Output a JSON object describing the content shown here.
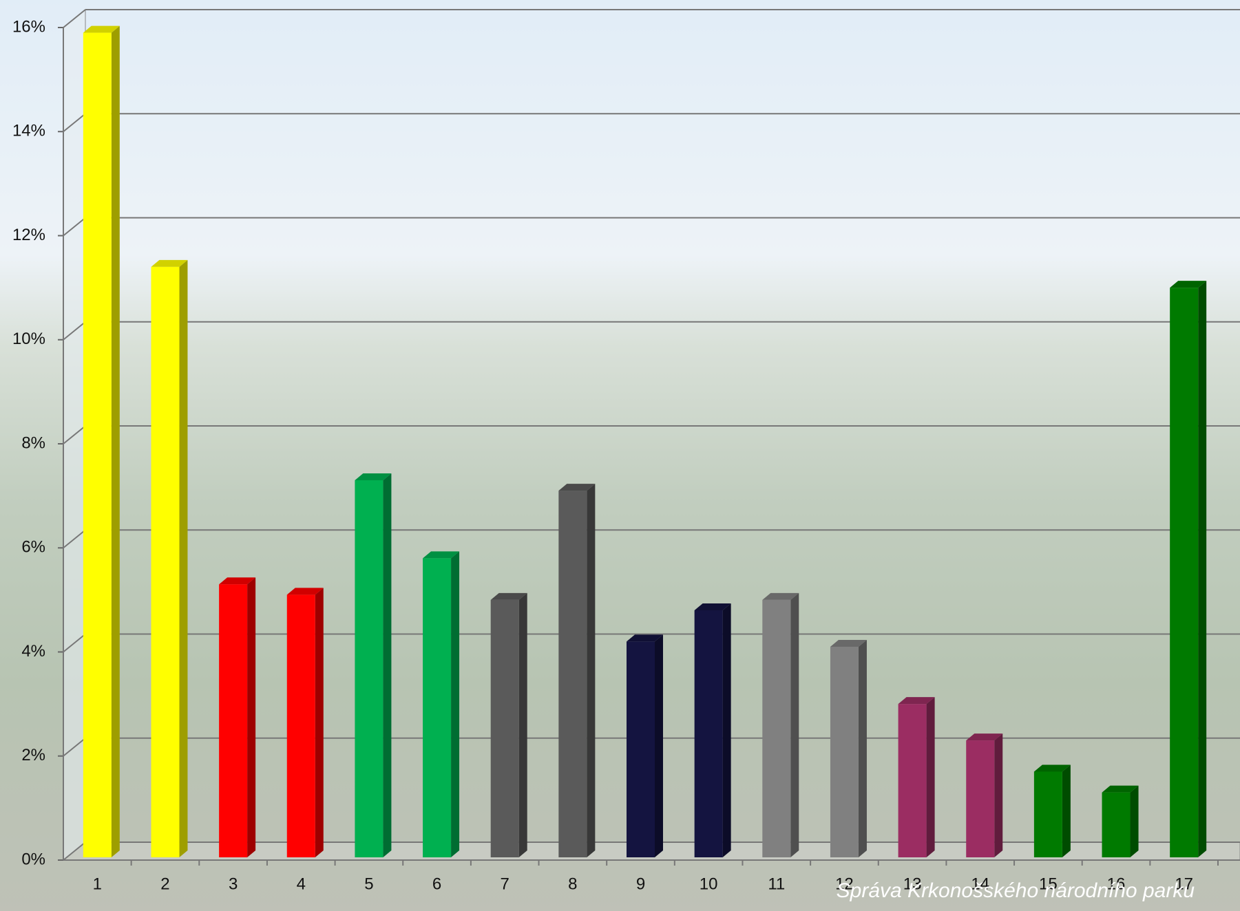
{
  "chart_data": {
    "type": "bar3d",
    "categories": [
      "1",
      "2",
      "3",
      "4",
      "5",
      "6",
      "7",
      "8",
      "9",
      "10",
      "11",
      "12",
      "13",
      "14",
      "15",
      "16",
      "17"
    ],
    "values": [
      15.9,
      11.4,
      5.3,
      5.1,
      7.3,
      5.8,
      5.0,
      7.1,
      4.2,
      4.8,
      5.0,
      4.1,
      3.0,
      2.3,
      1.7,
      1.3,
      11.0
    ],
    "colors": [
      "#ffff00",
      "#ffff00",
      "#ff0000",
      "#ff0000",
      "#00b050",
      "#00b050",
      "#5a5a5a",
      "#5a5a5a",
      "#141440",
      "#141440",
      "#808080",
      "#808080",
      "#9b2d62",
      "#9b2d62",
      "#007a00",
      "#007a00",
      "#007a00"
    ],
    "ylim": [
      0,
      16
    ],
    "yticks": [
      {
        "value": 0,
        "label": "0%"
      },
      {
        "value": 2,
        "label": "2%"
      },
      {
        "value": 4,
        "label": "4%"
      },
      {
        "value": 6,
        "label": "6%"
      },
      {
        "value": 8,
        "label": "8%"
      },
      {
        "value": 10,
        "label": "10%"
      },
      {
        "value": 12,
        "label": "12%"
      },
      {
        "value": 14,
        "label": "14%"
      },
      {
        "value": 16,
        "label": "16%"
      }
    ],
    "grid": true
  },
  "footer": "Správa Krkonošského národního parku"
}
